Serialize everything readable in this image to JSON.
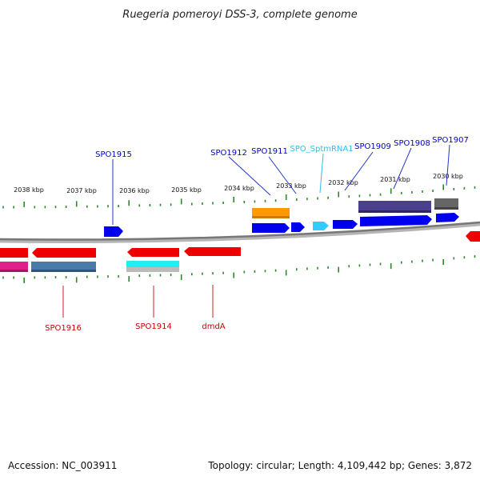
{
  "title": "Ruegeria pomeroyi DSS-3, complete genome",
  "footer": {
    "accession": "Accession: NC_003911",
    "summary": "Topology: circular; Length: 4,109,442 bp; Genes: 3,872"
  },
  "ruler_labels": [
    "2038 kbp",
    "2037 kbp",
    "2036 kbp",
    "2035 kbp",
    "2034 kbp",
    "2033 kbp",
    "2032 kbp",
    "2031 kbp",
    "2030 kbp"
  ],
  "upper_labels": [
    "SPO1915",
    "SPO1912",
    "SPO1911",
    "SPO_SptmRNA1",
    "SPO1909",
    "SPO1908",
    "SPO1907"
  ],
  "lower_labels": [
    "SPO1916",
    "SPO1914",
    "dmdA"
  ],
  "colors": {
    "gene_forward": "#0000ee",
    "gene_reverse": "#ee0000",
    "rna": "#33ccff",
    "label_forward": "#0000cc",
    "label_reverse": "#cc0000",
    "label_rna": "#33bbee",
    "ruler": "#2a8a2a",
    "backbone": "#888888",
    "orange_feature": "#ff9900",
    "purple_feature": "#4b3f8f",
    "gray_feature": "#666666",
    "magenta_feature": "#e0208a",
    "steel_feature": "#4a7aaa",
    "cyan_feature": "#22eeee"
  }
}
